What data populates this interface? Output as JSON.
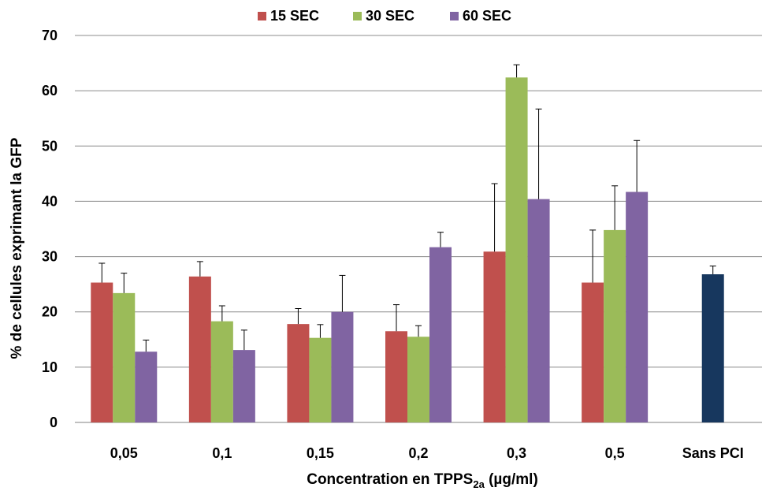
{
  "chart_data": {
    "type": "bar",
    "categories": [
      "0,05",
      "0,1",
      "0,15",
      "0,2",
      "0,3",
      "0,5",
      "Sans PCI"
    ],
    "series": [
      {
        "name": "15 SEC",
        "color": "#C0504D",
        "values": [
          25.3,
          26.4,
          17.8,
          16.5,
          30.9,
          25.3,
          null
        ],
        "errors": [
          3.5,
          2.7,
          2.8,
          4.8,
          12.3,
          9.5,
          null
        ]
      },
      {
        "name": "30 SEC",
        "color": "#9BBB59",
        "values": [
          23.4,
          18.3,
          15.3,
          15.5,
          62.4,
          34.8,
          null
        ],
        "errors": [
          3.6,
          2.8,
          2.4,
          2.0,
          2.3,
          8.0,
          null
        ]
      },
      {
        "name": "60 SEC",
        "color": "#8064A2",
        "values": [
          12.8,
          13.1,
          20.0,
          31.7,
          40.4,
          41.7,
          null
        ],
        "errors": [
          2.1,
          3.6,
          6.6,
          2.7,
          16.3,
          9.3,
          null
        ]
      },
      {
        "name": "",
        "color": "#17375E",
        "values": [
          null,
          null,
          null,
          null,
          null,
          null,
          26.8
        ],
        "errors": [
          null,
          null,
          null,
          null,
          null,
          null,
          1.5
        ]
      }
    ],
    "legend": [
      "15 SEC",
      "30 SEC",
      "60 SEC"
    ],
    "legend_position": "top",
    "title": "",
    "ylabel": "% de cellules exprimant la GFP",
    "xlabel_main": "Concentration en TPPS",
    "xlabel_sub": "2a",
    "xlabel_unit": " (µg/ml)",
    "ylim": [
      0,
      70
    ],
    "yticks": [
      "0",
      "10",
      "20",
      "30",
      "40",
      "50",
      "60",
      "70"
    ],
    "grid": true
  }
}
